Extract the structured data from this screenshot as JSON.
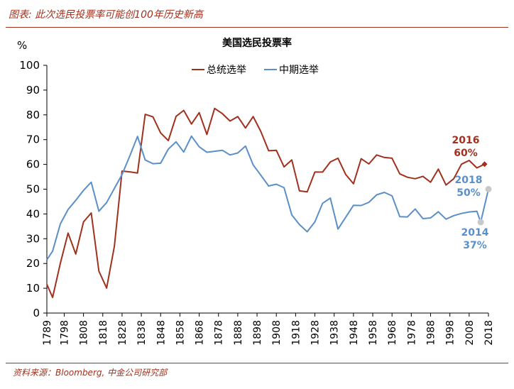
{
  "header": {
    "figure_title": "图表: 此次选民投票率可能创100年历史新高"
  },
  "footer": {
    "source": "资料来源：Bloomberg, 中金公司研究部"
  },
  "colors": {
    "presidential": "#a0311e",
    "midterm": "#5b8fc7",
    "accent": "#a0311e"
  },
  "chart_data": {
    "type": "line",
    "title": "美国选民投票率",
    "ylabel": "%",
    "ylim": [
      0,
      100
    ],
    "yticks": [
      0,
      10,
      20,
      30,
      40,
      50,
      60,
      70,
      80,
      90,
      100
    ],
    "xlim": [
      1789,
      2018
    ],
    "xticks": [
      1789,
      1798,
      1808,
      1818,
      1828,
      1838,
      1848,
      1858,
      1868,
      1878,
      1888,
      1898,
      1908,
      1918,
      1928,
      1938,
      1948,
      1958,
      1968,
      1978,
      1988,
      1998,
      2008,
      2018
    ],
    "legend": [
      "总统选举",
      "中期选举"
    ],
    "series": [
      {
        "name": "总统选举",
        "color": "#a0311e",
        "x": [
          1789,
          1792,
          1796,
          1800,
          1804,
          1808,
          1812,
          1816,
          1820,
          1824,
          1828,
          1832,
          1836,
          1840,
          1844,
          1848,
          1852,
          1856,
          1860,
          1864,
          1868,
          1872,
          1876,
          1880,
          1884,
          1888,
          1892,
          1896,
          1900,
          1904,
          1908,
          1912,
          1916,
          1920,
          1924,
          1928,
          1932,
          1936,
          1940,
          1944,
          1948,
          1952,
          1956,
          1960,
          1964,
          1968,
          1972,
          1976,
          1980,
          1984,
          1988,
          1992,
          1996,
          2000,
          2004,
          2008,
          2012,
          2016
        ],
        "values": [
          11.6,
          6.3,
          20.1,
          32.3,
          23.8,
          36.8,
          40.4,
          16.9,
          10.1,
          26.9,
          57.3,
          57.0,
          56.5,
          80.2,
          79.2,
          72.7,
          69.6,
          79.4,
          81.8,
          76.3,
          80.9,
          72.1,
          82.6,
          80.5,
          77.5,
          79.3,
          74.7,
          79.3,
          73.2,
          65.5,
          65.7,
          59.0,
          61.8,
          49.3,
          48.9,
          56.9,
          56.9,
          61.0,
          62.5,
          55.9,
          52.2,
          62.3,
          60.2,
          63.8,
          62.8,
          62.5,
          56.2,
          54.8,
          54.2,
          55.2,
          52.8,
          58.1,
          51.7,
          54.2,
          60.1,
          61.6,
          58.6,
          60.1
        ]
      },
      {
        "name": "中期选举",
        "color": "#5b8fc7",
        "x": [
          1789,
          1792,
          1796,
          1800,
          1804,
          1808,
          1812,
          1816,
          1820,
          1824,
          1828,
          1832,
          1836,
          1840,
          1844,
          1848,
          1852,
          1856,
          1860,
          1864,
          1868,
          1872,
          1876,
          1880,
          1884,
          1888,
          1892,
          1896,
          1900,
          1904,
          1908,
          1912,
          1916,
          1920,
          1924,
          1928,
          1932,
          1936,
          1940,
          1944,
          1948,
          1952,
          1956,
          1960,
          1964,
          1968,
          1972,
          1976,
          1980,
          1984,
          1988,
          1992,
          1996,
          2000,
          2004,
          2008,
          2012,
          2014,
          2018
        ],
        "values": [
          21.5,
          25.0,
          36.0,
          41.8,
          45.5,
          49.5,
          52.8,
          41.1,
          44.6,
          50.3,
          55.9,
          63.4,
          71.3,
          61.8,
          60.3,
          60.5,
          66.2,
          69.1,
          65.0,
          71.4,
          67.1,
          64.9,
          65.3,
          65.7,
          63.8,
          64.6,
          67.4,
          59.8,
          55.6,
          51.3,
          52.0,
          50.6,
          39.6,
          35.7,
          32.8,
          36.8,
          44.3,
          46.4,
          33.9,
          38.7,
          43.5,
          43.4,
          44.7,
          47.7,
          48.7,
          47.3,
          38.9,
          38.8,
          42.0,
          38.1,
          38.4,
          40.9,
          37.9,
          39.3,
          40.2,
          40.8,
          41.1,
          36.7,
          50.0
        ]
      }
    ],
    "annotations": [
      {
        "label_year": "2016",
        "label_value": "60%",
        "x": 2016,
        "y": 60.1,
        "series": "总统选举",
        "marker": "diamond"
      },
      {
        "label_year": "2018",
        "label_value": "50%",
        "x": 2018,
        "y": 50.0,
        "series": "中期选举",
        "marker": "circle"
      },
      {
        "label_year": "2014",
        "label_value": "37%",
        "x": 2014,
        "y": 36.7,
        "series": "中期选举",
        "marker": "circle"
      }
    ]
  }
}
